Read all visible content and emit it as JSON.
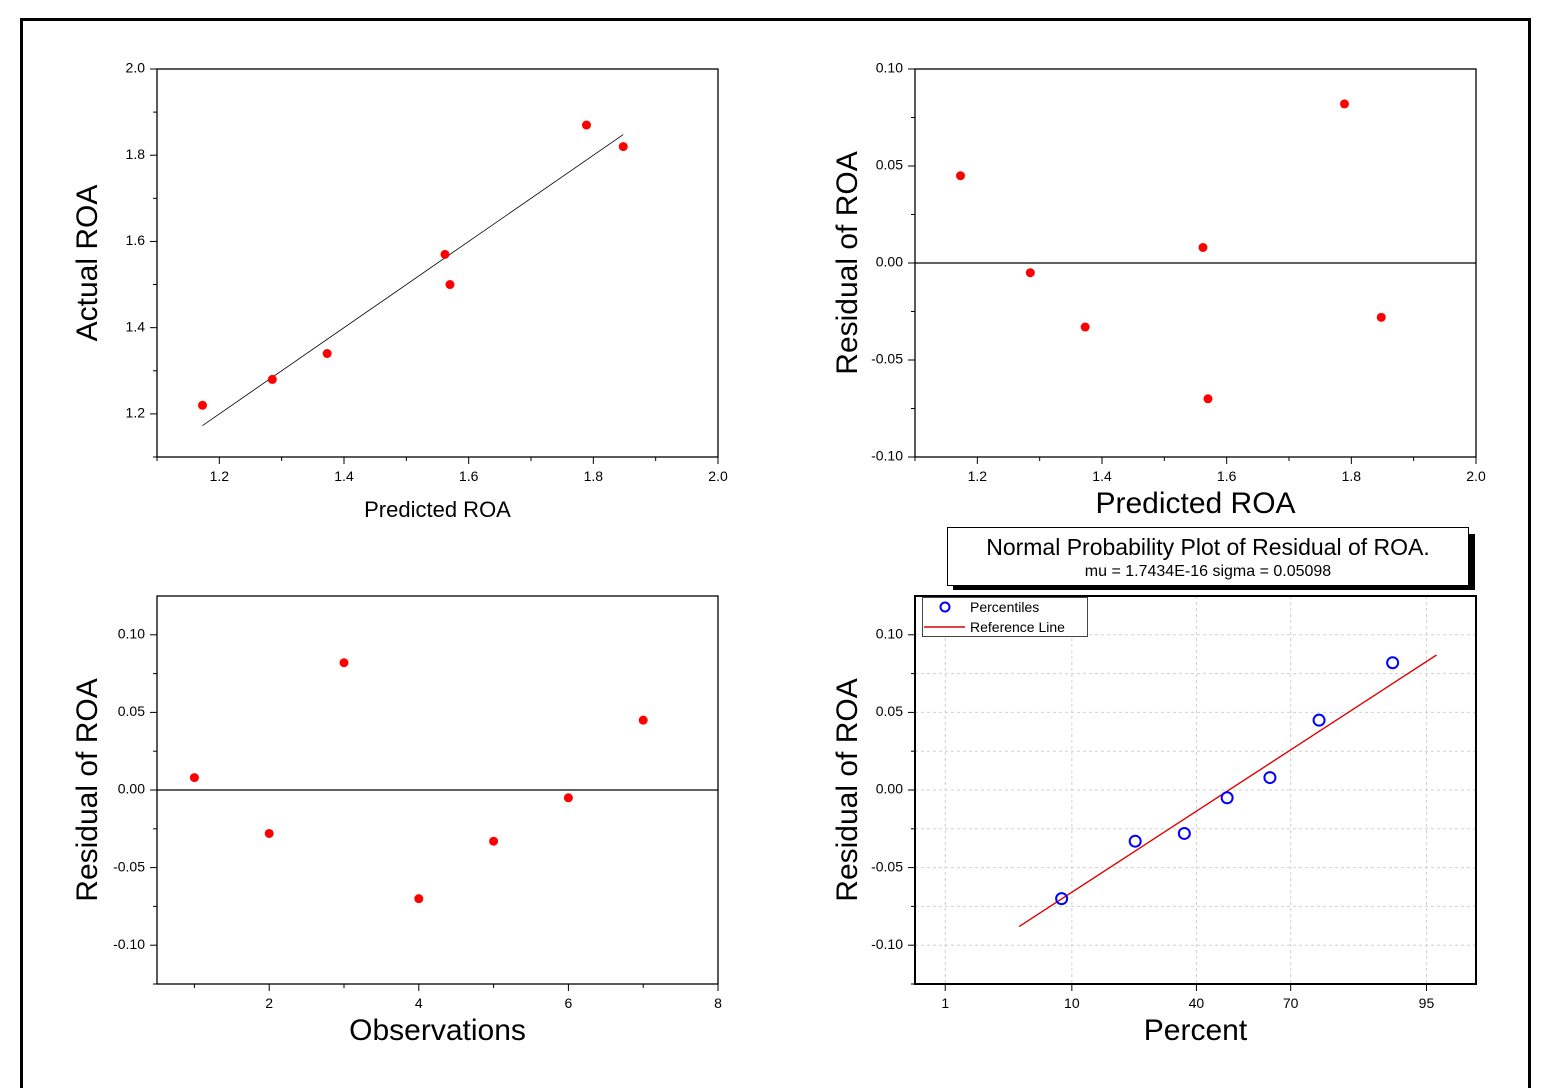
{
  "colors": {
    "marker": "#ff0000",
    "percentile_marker": "#0000ff",
    "reference_line": "#e00000",
    "fit_line": "#000000"
  },
  "chart_data": [
    {
      "type": "scatter",
      "xlabel": "Predicted ROA",
      "ylabel": "Actual ROA",
      "xlim": [
        1.1,
        2.0
      ],
      "ylim": [
        1.1,
        2.0
      ],
      "xticks": [
        "1.2",
        "1.4",
        "1.6",
        "1.8",
        "2.0"
      ],
      "yticks": [
        "1.2",
        "1.4",
        "1.6",
        "1.8",
        "2.0"
      ],
      "x": [
        1.173,
        1.285,
        1.373,
        1.562,
        1.57,
        1.789,
        1.848
      ],
      "y": [
        1.22,
        1.28,
        1.34,
        1.57,
        1.5,
        1.87,
        1.82
      ],
      "fit_line": {
        "x": [
          1.173,
          1.848
        ],
        "y": [
          1.173,
          1.848
        ]
      },
      "grid": false
    },
    {
      "type": "scatter",
      "xlabel": "Predicted ROA",
      "ylabel": "Residual of ROA",
      "xlim": [
        1.1,
        2.0
      ],
      "ylim": [
        -0.1,
        0.1
      ],
      "xticks": [
        "1.2",
        "1.4",
        "1.6",
        "1.8",
        "2.0"
      ],
      "yticks": [
        "-0.10",
        "-0.05",
        "0.00",
        "0.05",
        "0.10"
      ],
      "x": [
        1.173,
        1.285,
        1.373,
        1.562,
        1.57,
        1.789,
        1.848
      ],
      "y": [
        0.045,
        -0.005,
        -0.033,
        0.008,
        -0.07,
        0.082,
        -0.028
      ],
      "zero_line": true,
      "grid": false
    },
    {
      "type": "scatter",
      "xlabel": "Observations",
      "ylabel": "Residual of ROA",
      "xlim": [
        0.5,
        8
      ],
      "ylim": [
        -0.125,
        0.125
      ],
      "xticks": [
        "2",
        "4",
        "6",
        "8"
      ],
      "yticks": [
        "-0.10",
        "-0.05",
        "0.00",
        "0.05",
        "0.10"
      ],
      "x": [
        1,
        2,
        3,
        4,
        5,
        6,
        7
      ],
      "y": [
        0.008,
        -0.028,
        0.082,
        -0.07,
        -0.033,
        -0.005,
        0.045
      ],
      "zero_line": true,
      "grid": false
    },
    {
      "type": "scatter",
      "title": "Normal Probability Plot of Residual of ROA.",
      "subtitle": "mu = 1.7434E-16  sigma = 0.05098",
      "xlabel": "Percent",
      "ylabel": "Residual of ROA",
      "xscale": "probability",
      "xlim": [
        0.5,
        98
      ],
      "ylim": [
        -0.125,
        0.125
      ],
      "xticks": [
        "1",
        "10",
        "40",
        "70",
        "95"
      ],
      "yticks": [
        "-0.10",
        "-0.05",
        "0.00",
        "0.05",
        "0.10"
      ],
      "grid": true,
      "legend": {
        "position": "top-left",
        "entries": [
          "Percentiles",
          "Reference Line"
        ]
      },
      "series": [
        {
          "name": "Percentiles",
          "x": [
            8.6,
            22.4,
            36.2,
            50,
            63.8,
            77.6,
            91.4
          ],
          "y": [
            -0.07,
            -0.033,
            -0.028,
            -0.005,
            0.008,
            0.045,
            0.082
          ]
        },
        {
          "name": "Reference Line",
          "x": [
            4.3,
            95.8
          ],
          "y": [
            -0.088,
            0.087
          ]
        }
      ]
    }
  ]
}
